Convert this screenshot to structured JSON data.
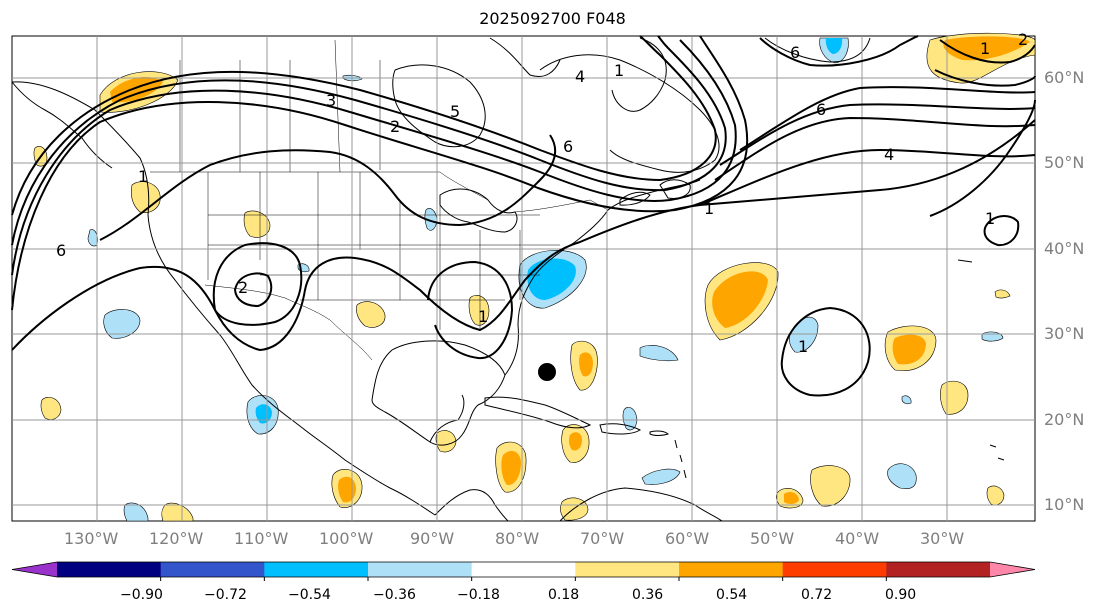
{
  "title": "2025092700 F048",
  "map": {
    "lon_labels": [
      "130°W",
      "120°W",
      "110°W",
      "100°W",
      "90°W",
      "80°W",
      "70°W",
      "60°W",
      "50°W",
      "40°W",
      "30°W"
    ],
    "lat_labels": [
      "60°N",
      "50°N",
      "40°N",
      "30°N",
      "20°N",
      "10°N"
    ],
    "contour_labels": [
      "6",
      "1",
      "2",
      "3",
      "4",
      "5",
      "6",
      "1",
      "2",
      "1",
      "1",
      "6",
      "4",
      "1",
      "1",
      "2",
      "6",
      "1"
    ],
    "marker": "storm-dot"
  },
  "colorbar": {
    "ticks": [
      "−0.90",
      "−0.72",
      "−0.54",
      "−0.36",
      "−0.18",
      "0.18",
      "0.36",
      "0.54",
      "0.72",
      "0.90"
    ],
    "colors": [
      "#9933cc",
      "#000080",
      "#3355cc",
      "#00bfff",
      "#aee0f8",
      "#ffffff",
      "#ffe680",
      "#ffa500",
      "#ff3c00",
      "#b22222",
      "#ff88aa"
    ]
  },
  "colors": {
    "grid": "#999999",
    "label": "#7f7f7f",
    "contour": "#000000"
  }
}
